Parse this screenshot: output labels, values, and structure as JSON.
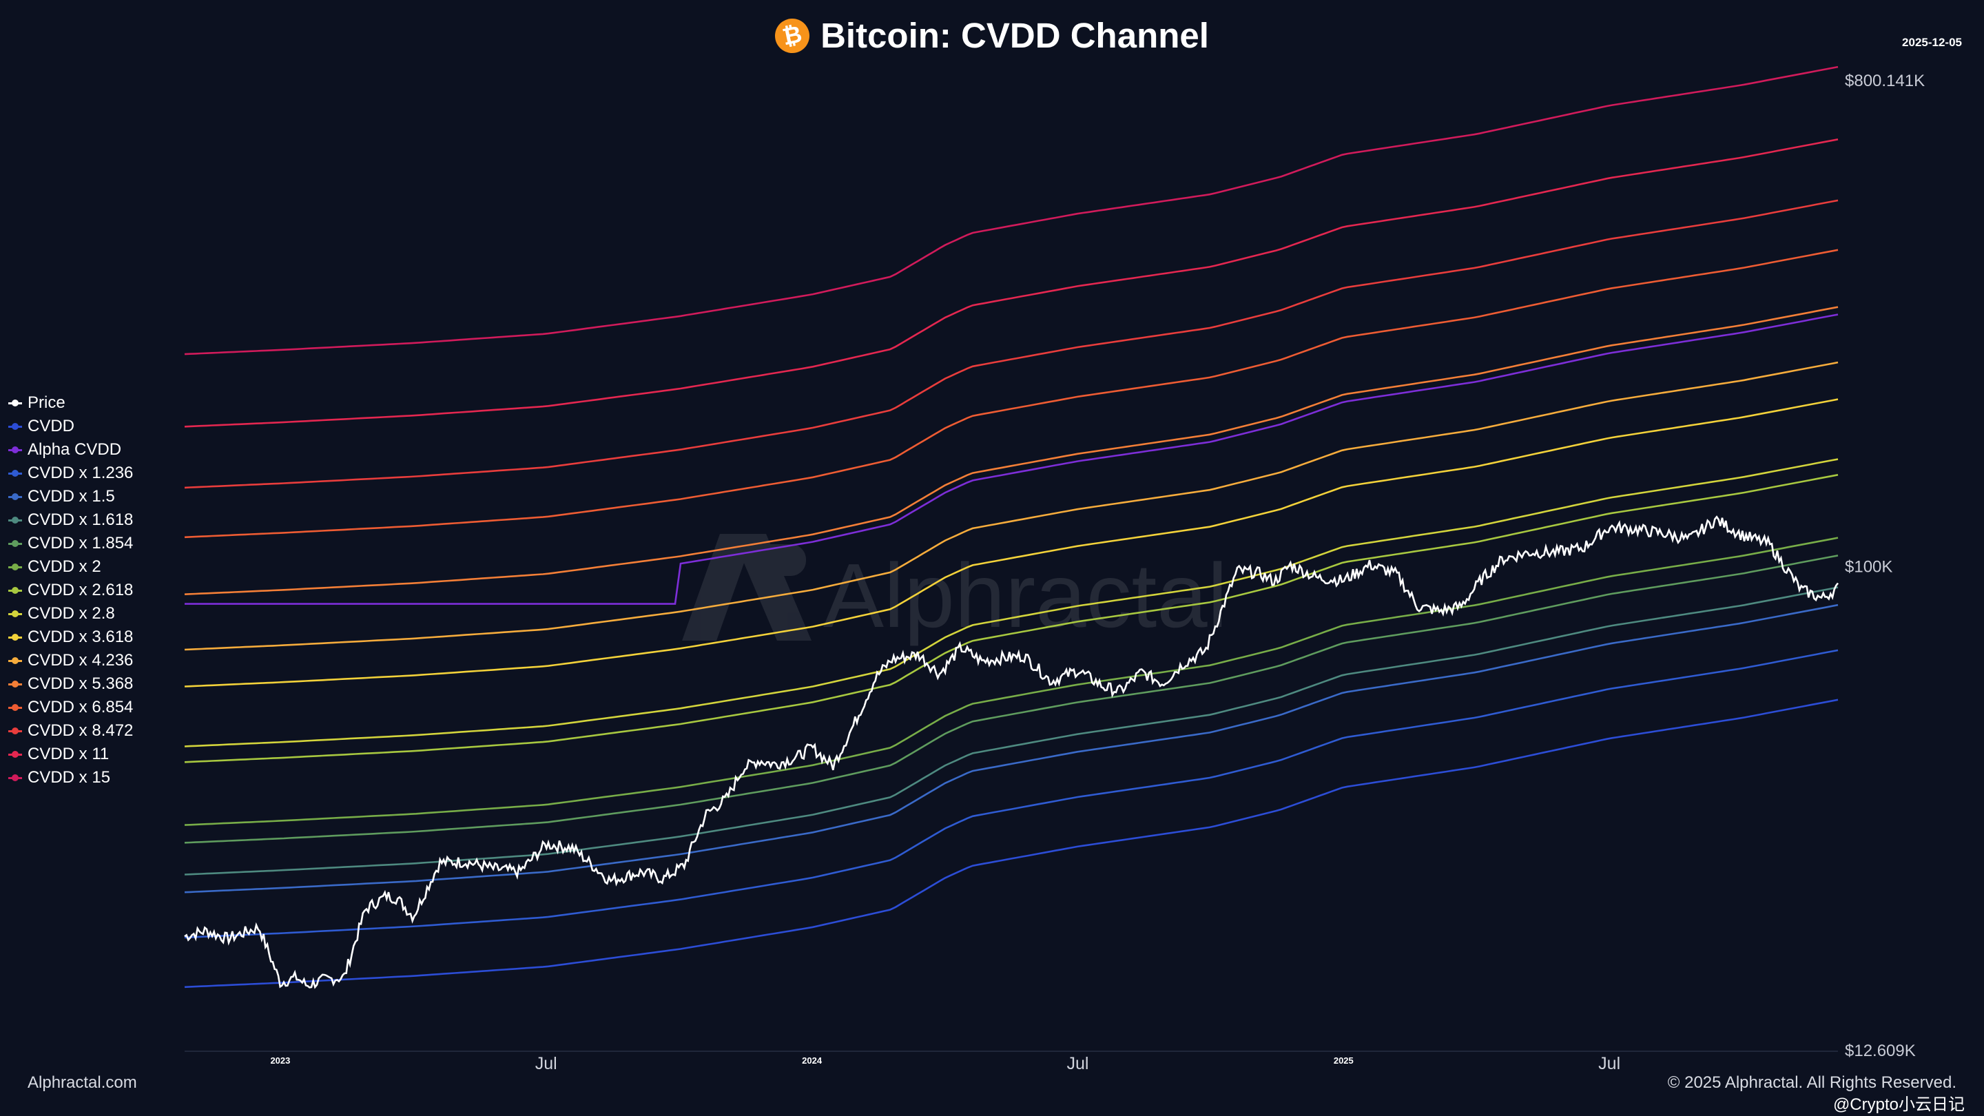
{
  "header": {
    "title": "Bitcoin: CVDD Channel",
    "logo_symbol": "₿",
    "date": "2025-12-05"
  },
  "watermark": "Alphractal",
  "footer": {
    "left": "Alphractal.com",
    "right": "© 2025 Alphractal. All Rights Reserved.",
    "source_tag": "@Crypto小云日记"
  },
  "colors": {
    "background": "#0c1120",
    "price": "#ffffff",
    "btc_orange": "#f7931a"
  },
  "chart_data": {
    "type": "line",
    "title": "Bitcoin: CVDD Channel",
    "y_scale": "log",
    "ylim": [
      12609,
      800141
    ],
    "y_tick_labels": [
      {
        "value": 800141,
        "label": "$800.141K"
      },
      {
        "value": 100000,
        "label": "$100K"
      },
      {
        "value": 12609,
        "label": "$12.609K"
      }
    ],
    "x_range": [
      2022.82,
      2025.93
    ],
    "x_tick_labels": [
      {
        "x": 2023.0,
        "label": "2023",
        "minor": true
      },
      {
        "x": 2023.5,
        "label": "Jul",
        "minor": false
      },
      {
        "x": 2024.0,
        "label": "2024",
        "minor": true
      },
      {
        "x": 2024.5,
        "label": "Jul",
        "minor": false
      },
      {
        "x": 2025.0,
        "label": "2025",
        "minor": true
      },
      {
        "x": 2025.5,
        "label": "Jul",
        "minor": false
      }
    ],
    "legend_position": "left",
    "cvdd_base": {
      "x": [
        2022.82,
        2023.0,
        2023.25,
        2023.5,
        2023.75,
        2024.0,
        2024.15,
        2024.25,
        2024.3,
        2024.5,
        2024.75,
        2024.88,
        2025.0,
        2025.25,
        2025.5,
        2025.75,
        2025.93
      ],
      "values": [
        16500,
        16800,
        17300,
        18000,
        19400,
        21300,
        23000,
        26300,
        27700,
        30100,
        32700,
        35200,
        38800,
        42300,
        47800,
        52200,
        56400
      ]
    },
    "series": [
      {
        "name": "Price",
        "color": "#ffffff",
        "is_price": true,
        "x": [
          2022.82,
          2022.86,
          2022.9,
          2022.96,
          2023.0,
          2023.03,
          2023.05,
          2023.08,
          2023.12,
          2023.16,
          2023.2,
          2023.22,
          2023.25,
          2023.3,
          2023.35,
          2023.4,
          2023.45,
          2023.5,
          2023.55,
          2023.62,
          2023.68,
          2023.72,
          2023.76,
          2023.8,
          2023.84,
          2023.87,
          2023.9,
          2023.93,
          2023.97,
          2024.0,
          2024.04,
          2024.08,
          2024.12,
          2024.15,
          2024.2,
          2024.24,
          2024.28,
          2024.32,
          2024.36,
          2024.4,
          2024.45,
          2024.5,
          2024.55,
          2024.58,
          2024.62,
          2024.66,
          2024.7,
          2024.74,
          2024.8,
          2024.84,
          2024.87,
          2024.9,
          2024.95,
          2025.0,
          2025.05,
          2025.1,
          2025.14,
          2025.18,
          2025.22,
          2025.26,
          2025.3,
          2025.35,
          2025.4,
          2025.45,
          2025.5,
          2025.55,
          2025.6,
          2025.65,
          2025.7,
          2025.75,
          2025.8,
          2025.86,
          2025.9,
          2025.93
        ],
        "values": [
          20500,
          21000,
          20300,
          21300,
          16800,
          17200,
          16600,
          17000,
          17200,
          23000,
          24400,
          24100,
          22300,
          28100,
          28200,
          27400,
          27000,
          30400,
          29900,
          26000,
          27000,
          26200,
          27800,
          34500,
          37000,
          42000,
          43500,
          42800,
          44000,
          46000,
          42500,
          51000,
          62000,
          67000,
          68500,
          63000,
          70500,
          66500,
          67500,
          68000,
          61000,
          64000,
          59500,
          58500,
          63500,
          60500,
          66000,
          69500,
          98000,
          97000,
          93500,
          100500,
          95000,
          94000,
          100500,
          96500,
          84000,
          82500,
          84000,
          94500,
          103000,
          106000,
          106000,
          108000,
          118000,
          117000,
          115000,
          112000,
          122000,
          114000,
          110000,
          90500,
          87000,
          91000
        ]
      },
      {
        "name": "CVDD",
        "color": "#2c4dd6",
        "multiplier": 1
      },
      {
        "name": "Alpha CVDD",
        "color": "#7d2ed8",
        "multiplier": 5.2,
        "flat_until": 2023.75,
        "flat_value": 85000
      },
      {
        "name": "CVDD x 1.236",
        "color": "#2f5bd2",
        "multiplier": 1.236
      },
      {
        "name": "CVDD x 1.5",
        "color": "#3a6ac8",
        "multiplier": 1.5
      },
      {
        "name": "CVDD x 1.618",
        "color": "#4e8a80",
        "multiplier": 1.618
      },
      {
        "name": "CVDD x 1.854",
        "color": "#5f9c5e",
        "multiplier": 1.854
      },
      {
        "name": "CVDD x 2",
        "color": "#78ad48",
        "multiplier": 2
      },
      {
        "name": "CVDD x 2.618",
        "color": "#a8c840",
        "multiplier": 2.618
      },
      {
        "name": "CVDD x 2.8",
        "color": "#d3d43c",
        "multiplier": 2.8
      },
      {
        "name": "CVDD x 3.618",
        "color": "#f3d23a",
        "multiplier": 3.618
      },
      {
        "name": "CVDD x 4.236",
        "color": "#f6ac3c",
        "multiplier": 4.236
      },
      {
        "name": "CVDD x 5.368",
        "color": "#f47f37",
        "multiplier": 5.368
      },
      {
        "name": "CVDD x 6.854",
        "color": "#ee5c33",
        "multiplier": 6.854
      },
      {
        "name": "CVDD x 8.472",
        "color": "#e93d3c",
        "multiplier": 8.472
      },
      {
        "name": "CVDD x 11",
        "color": "#e42750",
        "multiplier": 11
      },
      {
        "name": "CVDD x 15",
        "color": "#d11b5b",
        "multiplier": 15
      }
    ]
  }
}
